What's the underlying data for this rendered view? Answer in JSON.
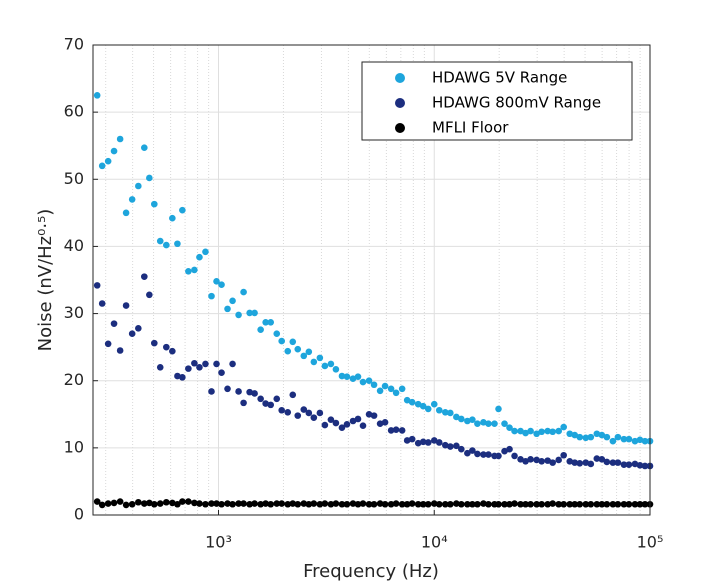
{
  "chart_data": {
    "type": "scatter",
    "xlabel": "Frequency (Hz)",
    "ylabel": "Noise (nV/Hz⁰·⁵)",
    "xlog": true,
    "grid": true,
    "minor_grid": true,
    "legend": "upper right",
    "xlim": [
      262,
      100000
    ],
    "ylim": [
      0,
      70
    ],
    "xticks": [
      {
        "value": 1000,
        "label": "10³"
      },
      {
        "value": 10000,
        "label": "10⁴"
      },
      {
        "value": 100000,
        "label": "10⁵"
      }
    ],
    "yticks": [
      0,
      10,
      20,
      30,
      40,
      50,
      60,
      70
    ],
    "x": [
      274,
      289,
      308,
      328,
      350,
      373,
      398,
      425,
      453,
      478,
      504,
      537,
      573,
      611,
      645,
      680,
      725,
      773,
      816,
      870,
      928,
      979,
      1033,
      1101,
      1162,
      1239,
      1307,
      1394,
      1470,
      1568,
      1654,
      1746,
      1862,
      1963,
      2094,
      2209,
      2330,
      2485,
      2622,
      2766,
      2950,
      3112,
      3319,
      3501,
      3734,
      3939,
      4201,
      4432,
      4675,
      4986,
      5260,
      5610,
      5917,
      6310,
      6656,
      7100,
      7489,
      7900,
      8426,
      8888,
      9378,
      10000,
      10550,
      11250,
      11870,
      12660,
      13350,
      14240,
      15020,
      15850,
      16900,
      17830,
      19020,
      19850,
      21170,
      22330,
      23560,
      25120,
      26500,
      27960,
      29820,
      31460,
      33550,
      35390,
      37730,
      39810,
      42460,
      44790,
      47250,
      50390,
      53170,
      56700,
      59820,
      63100,
      67300,
      71000,
      75710,
      79870,
      85180,
      89850,
      94790,
      100000
    ],
    "series": [
      {
        "name": "HDAWG 5V Range",
        "color": "#1ea5dc",
        "values": [
          62.5,
          52,
          52.7,
          54.2,
          56,
          45,
          47,
          49,
          54.7,
          50.2,
          46.3,
          40.8,
          40.2,
          44.2,
          40.4,
          45.4,
          36.3,
          36.5,
          38.4,
          39.2,
          32.6,
          34.8,
          34.3,
          30.7,
          31.9,
          29.8,
          33.2,
          30.1,
          30.1,
          27.6,
          28.7,
          28.7,
          27,
          25.9,
          24.4,
          25.8,
          24.7,
          23.7,
          24.3,
          22.8,
          23.4,
          22.2,
          22.5,
          21.7,
          20.7,
          20.6,
          20.3,
          20.6,
          19.8,
          20,
          19.4,
          18.5,
          19.2,
          18.8,
          18.2,
          18.8,
          17.1,
          16.8,
          16.5,
          16.2,
          15.8,
          16.5,
          15.6,
          15.3,
          15.2,
          14.6,
          14.3,
          14,
          14.2,
          13.6,
          13.8,
          13.6,
          13.6,
          15.8,
          13.6,
          13,
          12.5,
          12.5,
          12.2,
          12.5,
          12.1,
          12.4,
          12.5,
          12.4,
          12.5,
          13.1,
          12.1,
          11.9,
          11.6,
          11.5,
          11.6,
          12.1,
          11.9,
          11.6,
          11,
          11.6,
          11.3,
          11.3,
          11,
          11.2,
          11,
          11
        ]
      },
      {
        "name": "HDAWG 800mV Range",
        "color": "#1c2e7f",
        "values": [
          34.2,
          31.5,
          25.5,
          28.5,
          24.5,
          31.2,
          27,
          27.8,
          35.5,
          32.8,
          25.6,
          22,
          25,
          24.4,
          20.7,
          20.5,
          21.8,
          22.6,
          22,
          22.5,
          18.4,
          22.5,
          21.2,
          18.8,
          22.5,
          18.4,
          16.7,
          18.3,
          18.1,
          17.3,
          16.6,
          16.4,
          17.3,
          15.6,
          15.3,
          17.9,
          14.8,
          15.7,
          15.2,
          14.5,
          15.2,
          13.4,
          14.2,
          13.7,
          13,
          13.5,
          14,
          14.3,
          13.3,
          15,
          14.8,
          13.6,
          13.8,
          12.6,
          12.7,
          12.6,
          11.1,
          11.3,
          10.7,
          10.9,
          10.8,
          11.1,
          10.8,
          10.4,
          10.2,
          10.3,
          9.8,
          9.2,
          9.6,
          9.1,
          9,
          9,
          8.8,
          8.8,
          9.5,
          9.8,
          8.8,
          8.3,
          8,
          8.3,
          8.2,
          8,
          8.1,
          7.8,
          8.2,
          8.9,
          8,
          7.8,
          7.7,
          7.8,
          7.6,
          8.4,
          8.3,
          7.9,
          7.8,
          7.8,
          7.5,
          7.5,
          7.6,
          7.4,
          7.3,
          7.3
        ]
      },
      {
        "name": "MFLI Floor",
        "color": "#000000",
        "values": [
          2,
          1.5,
          1.7,
          1.8,
          2,
          1.5,
          1.6,
          1.9,
          1.7,
          1.8,
          1.6,
          1.7,
          1.9,
          1.8,
          1.6,
          2,
          2,
          1.8,
          1.7,
          1.6,
          1.7,
          1.7,
          1.6,
          1.7,
          1.6,
          1.7,
          1.7,
          1.6,
          1.7,
          1.6,
          1.7,
          1.6,
          1.7,
          1.7,
          1.6,
          1.7,
          1.6,
          1.7,
          1.6,
          1.7,
          1.6,
          1.7,
          1.6,
          1.7,
          1.6,
          1.6,
          1.7,
          1.6,
          1.7,
          1.6,
          1.6,
          1.7,
          1.6,
          1.6,
          1.7,
          1.6,
          1.6,
          1.7,
          1.6,
          1.6,
          1.6,
          1.7,
          1.6,
          1.6,
          1.6,
          1.7,
          1.6,
          1.6,
          1.6,
          1.6,
          1.7,
          1.6,
          1.6,
          1.6,
          1.6,
          1.6,
          1.7,
          1.6,
          1.6,
          1.6,
          1.6,
          1.6,
          1.6,
          1.7,
          1.6,
          1.6,
          1.6,
          1.6,
          1.6,
          1.6,
          1.6,
          1.6,
          1.6,
          1.6,
          1.6,
          1.6,
          1.6,
          1.6,
          1.6,
          1.6,
          1.6,
          1.6
        ]
      }
    ]
  }
}
